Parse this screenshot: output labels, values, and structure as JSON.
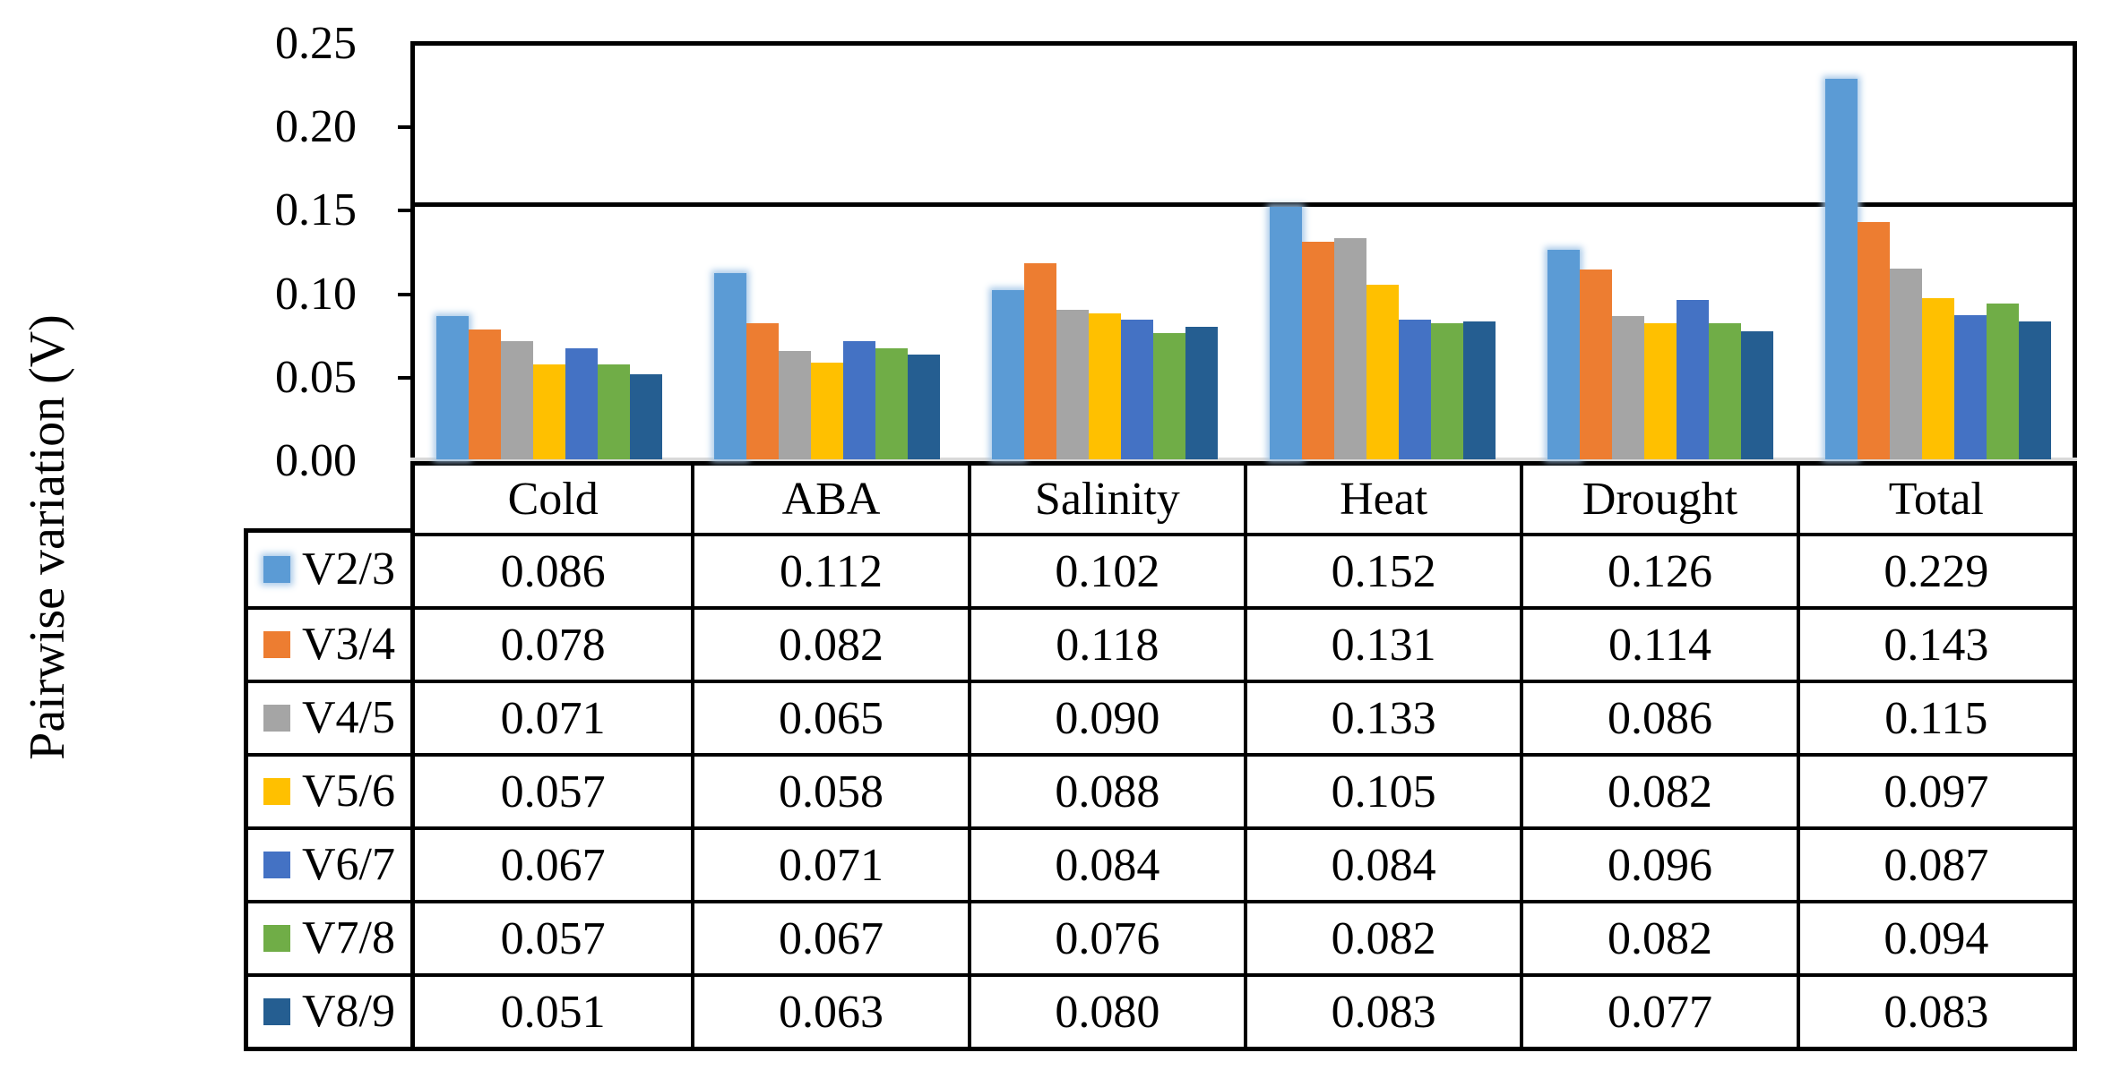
{
  "chart_data": {
    "type": "bar",
    "title": "",
    "xlabel": "",
    "ylabel": "Pairwise variation (V)",
    "categories": [
      "Cold",
      "ABA",
      "Salinity",
      "Heat",
      "Drought",
      "Total"
    ],
    "series": [
      {
        "name": "V2/3",
        "color": "#5B9BD5",
        "values": [
          0.086,
          0.112,
          0.102,
          0.152,
          0.126,
          0.229
        ]
      },
      {
        "name": "V3/4",
        "color": "#ED7D31",
        "values": [
          0.078,
          0.082,
          0.118,
          0.131,
          0.114,
          0.143
        ]
      },
      {
        "name": "V4/5",
        "color": "#A5A5A5",
        "values": [
          0.071,
          0.065,
          0.09,
          0.133,
          0.086,
          0.115
        ]
      },
      {
        "name": "V5/6",
        "color": "#FFC000",
        "values": [
          0.057,
          0.058,
          0.088,
          0.105,
          0.082,
          0.097
        ]
      },
      {
        "name": "V6/7",
        "color": "#4472C4",
        "values": [
          0.067,
          0.071,
          0.084,
          0.084,
          0.096,
          0.087
        ]
      },
      {
        "name": "V7/8",
        "color": "#70AD47",
        "values": [
          0.057,
          0.067,
          0.076,
          0.082,
          0.082,
          0.094
        ]
      },
      {
        "name": "V8/9",
        "color": "#255E91",
        "values": [
          0.051,
          0.063,
          0.08,
          0.083,
          0.077,
          0.083
        ]
      }
    ],
    "ylim": [
      0,
      0.25
    ],
    "y_tick_labels": [
      "0.25",
      "0.20",
      "0.15",
      "0.10",
      "0.05",
      "0.00"
    ],
    "y_tick_values": [
      0.25,
      0.2,
      0.15,
      0.1,
      0.05,
      0.0
    ],
    "threshold_line": 0.15,
    "grid": false,
    "legend_position": "table-left-column",
    "axis_color": "#000000",
    "baseline_color": "#D9D9D9"
  },
  "table": {
    "column_headers": [
      "Cold",
      "ABA",
      "Salinity",
      "Heat",
      "Drought",
      "Total"
    ],
    "rows": [
      {
        "label": "V2/3",
        "values": [
          "0.086",
          "0.112",
          "0.102",
          "0.152",
          "0.126",
          "0.229"
        ]
      },
      {
        "label": "V3/4",
        "values": [
          "0.078",
          "0.082",
          "0.118",
          "0.131",
          "0.114",
          "0.143"
        ]
      },
      {
        "label": "V4/5",
        "values": [
          "0.071",
          "0.065",
          "0.090",
          "0.133",
          "0.086",
          "0.115"
        ]
      },
      {
        "label": "V5/6",
        "values": [
          "0.057",
          "0.058",
          "0.088",
          "0.105",
          "0.082",
          "0.097"
        ]
      },
      {
        "label": "V6/7",
        "values": [
          "0.067",
          "0.071",
          "0.084",
          "0.084",
          "0.096",
          "0.087"
        ]
      },
      {
        "label": "V7/8",
        "values": [
          "0.057",
          "0.067",
          "0.076",
          "0.082",
          "0.082",
          "0.094"
        ]
      },
      {
        "label": "V8/9",
        "values": [
          "0.051",
          "0.063",
          "0.080",
          "0.083",
          "0.077",
          "0.083"
        ]
      }
    ]
  }
}
